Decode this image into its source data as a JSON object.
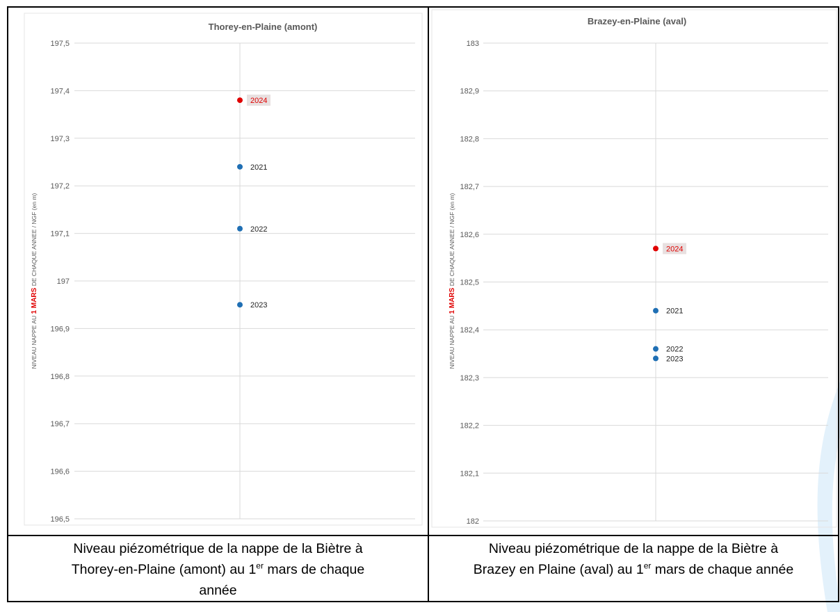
{
  "chart_data": [
    {
      "type": "scatter",
      "title": "Thorey-en-Plaine (amont)",
      "ylabel_parts": [
        "NIVEAU NAPPE AU ",
        "1 MARS",
        " DE CHAQUE ANNEE  / NGF (en m)"
      ],
      "ylim": [
        196.5,
        197.5
      ],
      "yticks": [
        "197,5",
        "197,4",
        "197,3",
        "197,2",
        "197,1",
        "197",
        "196,9",
        "196,8",
        "196,7",
        "196,6",
        "196,5"
      ],
      "grid": true,
      "points": [
        {
          "label": "2024",
          "y": 197.38,
          "color": "#e00000",
          "highlight": true
        },
        {
          "label": "2021",
          "y": 197.24,
          "color": "#1f6fb4",
          "highlight": false
        },
        {
          "label": "2022",
          "y": 197.11,
          "color": "#1f6fb4",
          "highlight": false
        },
        {
          "label": "2023",
          "y": 196.95,
          "color": "#1f6fb4",
          "highlight": false
        }
      ]
    },
    {
      "type": "scatter",
      "title": "Brazey-en-Plaine (aval)",
      "ylabel_parts": [
        "NIVEAU NAPPE AU ",
        "1 MARS",
        " DE CHAQUE ANNEE  / NGF (en m)"
      ],
      "ylim": [
        182,
        183
      ],
      "yticks": [
        "183",
        "182,9",
        "182,8",
        "182,7",
        "182,6",
        "182,5",
        "182,4",
        "182,3",
        "182,2",
        "182,1",
        "182"
      ],
      "grid": true,
      "points": [
        {
          "label": "2024",
          "y": 182.57,
          "color": "#e00000",
          "highlight": true
        },
        {
          "label": "2021",
          "y": 182.44,
          "color": "#1f6fb4",
          "highlight": false
        },
        {
          "label": "2022",
          "y": 182.36,
          "color": "#1f6fb4",
          "highlight": false
        },
        {
          "label": "2023",
          "y": 182.34,
          "color": "#1f6fb4",
          "highlight": false
        }
      ]
    }
  ],
  "captions": {
    "left": {
      "line1": "Niveau piézométrique de la nappe de la Biètre à",
      "line2_pre": "Thorey-en-Plaine (amont) au 1",
      "line2_sup": "er",
      "line2_post": " mars de chaque",
      "line3": "année"
    },
    "right": {
      "line1": "Niveau piézométrique de la nappe de la Biètre à",
      "line2_pre": "Brazey en Plaine (aval) au 1",
      "line2_sup": "er",
      "line2_post": " mars de chaque année"
    }
  },
  "colors": {
    "axis_text": "#595959",
    "grid": "#d9d9d9",
    "series_blue": "#1f6fb4",
    "highlight_red": "#e00000",
    "highlight_bg": "#e8e0e0",
    "deco": "#dceef9"
  }
}
